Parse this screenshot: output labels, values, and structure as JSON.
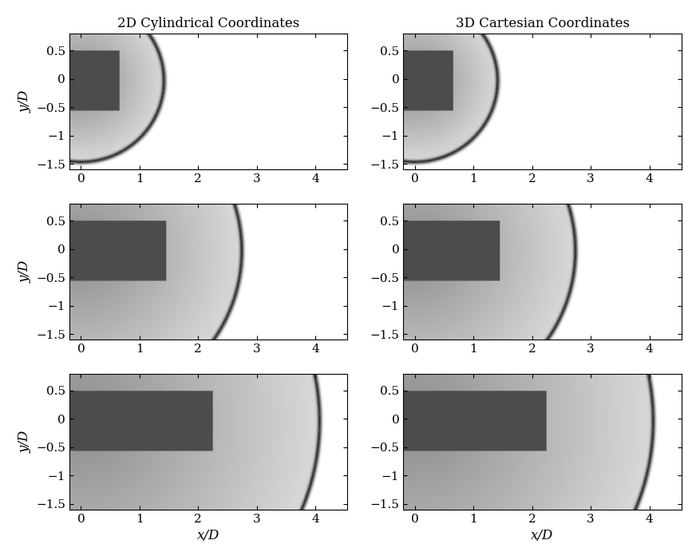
{
  "chart_data": [
    {
      "type": "image",
      "title": "2D Cylindrical Coordinates",
      "y_label": "y/D",
      "xlim": [
        -0.2,
        4.55
      ],
      "ylim": [
        -1.6,
        0.8
      ],
      "xticks": [
        0,
        1,
        2,
        3,
        4
      ],
      "yticks": [
        {
          "value": -1.5,
          "label": "−1.5"
        },
        {
          "value": -1,
          "label": "−1"
        },
        {
          "value": -0.5,
          "label": "−0.5"
        },
        0,
        0.5
      ]
    },
    {
      "type": "image",
      "title": "3D Cartesian Coordinates",
      "xlim": [
        -0.2,
        4.55
      ],
      "ylim": [
        -1.6,
        0.8
      ],
      "xticks": [
        0,
        1,
        2,
        3,
        4
      ],
      "yticks": [
        {
          "value": -1.5,
          "label": "−1.5"
        },
        {
          "value": -1,
          "label": "−1"
        },
        {
          "value": -0.5,
          "label": "−0.5"
        },
        0,
        0.5
      ]
    },
    {
      "type": "image",
      "y_label": "y/D",
      "xlim": [
        -0.2,
        4.55
      ],
      "ylim": [
        -1.6,
        0.8
      ],
      "xticks": [
        0,
        1,
        2,
        3,
        4
      ],
      "yticks": [
        {
          "value": -1.5,
          "label": "−1.5"
        },
        {
          "value": -1,
          "label": "−1"
        },
        {
          "value": -0.5,
          "label": "−0.5"
        },
        0,
        0.5
      ]
    },
    {
      "type": "image",
      "xlim": [
        -0.2,
        4.55
      ],
      "ylim": [
        -1.6,
        0.8
      ],
      "xticks": [
        0,
        1,
        2,
        3,
        4
      ],
      "yticks": [
        {
          "value": -1.5,
          "label": "−1.5"
        },
        {
          "value": -1,
          "label": "−1"
        },
        {
          "value": -0.5,
          "label": "−0.5"
        },
        0,
        0.5
      ]
    },
    {
      "type": "image",
      "x_label": "x/D",
      "y_label": "y/D",
      "xlim": [
        -0.2,
        4.55
      ],
      "ylim": [
        -1.6,
        0.8
      ],
      "xticks": [
        0,
        1,
        2,
        3,
        4
      ],
      "yticks": [
        {
          "value": -1.5,
          "label": "−1.5"
        },
        {
          "value": -1,
          "label": "−1"
        },
        {
          "value": -0.5,
          "label": "−0.5"
        },
        0,
        0.5
      ]
    },
    {
      "type": "image",
      "x_label": "x/D",
      "xlim": [
        -0.2,
        4.55
      ],
      "ylim": [
        -1.6,
        0.8
      ],
      "xticks": [
        0,
        1,
        2,
        3,
        4
      ],
      "yticks": [
        {
          "value": -1.5,
          "label": "−1.5"
        },
        {
          "value": -1,
          "label": "−1"
        },
        {
          "value": -0.5,
          "label": "−0.5"
        },
        0,
        0.5
      ]
    }
  ]
}
